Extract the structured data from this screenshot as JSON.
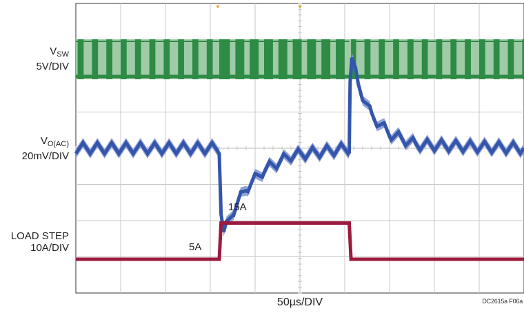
{
  "chart_data": {
    "type": "line",
    "title": "",
    "xlabel": "50µs/DIV",
    "grid": true,
    "grid_divisions": {
      "x": 10,
      "y": 8
    },
    "x_unit": "µs",
    "x_per_div": 50,
    "xlim": [
      0,
      500
    ],
    "colors": {
      "vsw": "#2e8b45",
      "vsw_fill": "#9fcba6",
      "vout": "#3355aa",
      "vout_light": "#8c9dd6",
      "load": "#9c1a3e",
      "grid": "#c8c8c8"
    },
    "series": [
      {
        "key": "vsw",
        "name_main": "V",
        "name_sub": "SW",
        "scale": "5V/DIV",
        "description_type": "switching square wave",
        "pulse_period_us": 16,
        "x_us": [
          0,
          160,
          162,
          305,
          307,
          500
        ]
      },
      {
        "key": "vout",
        "name_main": "V",
        "name_sub": "O(AC)",
        "scale": "20mV/DIV",
        "unit": "mV",
        "x_us": [
          0,
          160,
          162,
          165,
          175,
          190,
          210,
          240,
          305,
          306,
          308,
          315,
          330,
          350,
          380,
          500
        ],
        "y_mV": [
          0,
          0,
          -35,
          -47,
          -35,
          -22,
          -12,
          -4,
          0,
          38,
          50,
          35,
          18,
          8,
          2,
          0
        ],
        "ripple_mV": 6
      },
      {
        "key": "load",
        "name": "LOAD STEP",
        "scale": "10A/DIV",
        "unit": "A",
        "x_us": [
          0,
          160,
          162,
          305,
          307,
          500
        ],
        "y_A": [
          5,
          5,
          15,
          15,
          5,
          5
        ]
      }
    ],
    "annotations": [
      {
        "text": "5A"
      },
      {
        "text": "15A"
      }
    ],
    "code": "DC2615a F06a"
  }
}
